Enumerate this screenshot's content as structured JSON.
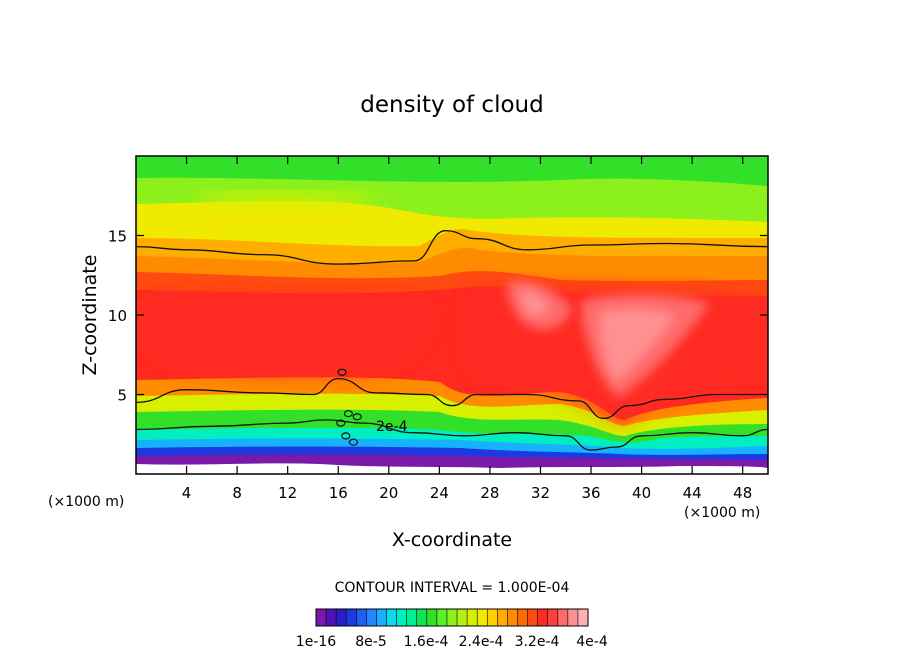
{
  "chart_data": {
    "type": "filled-contour",
    "title": "density of cloud",
    "xlabel": "X-coordinate",
    "ylabel": "Z-coordinate",
    "x_unit": "(×1000 m)",
    "y_unit": "(×1000 m)",
    "xlim": [
      0,
      50
    ],
    "ylim": [
      0,
      20
    ],
    "x_ticks": [
      4,
      8,
      12,
      16,
      20,
      24,
      28,
      32,
      36,
      40,
      44,
      48
    ],
    "y_ticks": [
      5,
      10,
      15
    ],
    "contour_interval_text": "CONTOUR INTERVAL = 1.000E-04",
    "contour_label": "2e-4",
    "colorbar_labels": [
      "1e-16",
      "8e-5",
      "1.6e-4",
      "2.4e-4",
      "3.2e-4",
      "4e-4"
    ],
    "colorbar_colors": [
      "#7a1aa8",
      "#4d12b8",
      "#2a1ec8",
      "#1c3ae0",
      "#1f5ff2",
      "#2585ff",
      "#16b2ff",
      "#0fd9ea",
      "#00eec0",
      "#00f090",
      "#12e45a",
      "#32e02a",
      "#5cf028",
      "#8cf01c",
      "#b4f014",
      "#d7f000",
      "#f0ea00",
      "#ffd000",
      "#ffae00",
      "#ff8c00",
      "#ff6a00",
      "#ff4a10",
      "#ff2a20",
      "#ff4040",
      "#ff6a6a",
      "#ff9090",
      "#ffb0b0"
    ],
    "zones": [
      {
        "name": "base",
        "color": "#7a1aa8"
      },
      {
        "name": "green",
        "color": "#32e02a"
      },
      {
        "name": "yellow",
        "color": "#f0ea00"
      },
      {
        "name": "orange",
        "color": "#ff8c00"
      },
      {
        "name": "red",
        "color": "#ff2a20"
      },
      {
        "name": "pink",
        "color": "#ff9090"
      }
    ],
    "contour_lines": [
      {
        "name": "upper-boundary",
        "points": [
          [
            0,
            14.3
          ],
          [
            4,
            14.1
          ],
          [
            10,
            13.8
          ],
          [
            16,
            13.2
          ],
          [
            22,
            13.4
          ],
          [
            24.5,
            15.3
          ],
          [
            27,
            14.8
          ],
          [
            31,
            14.1
          ],
          [
            36,
            14.4
          ],
          [
            42,
            14.5
          ],
          [
            50,
            14.3
          ]
        ]
      },
      {
        "name": "lower-boundary",
        "points": [
          [
            0,
            4.5
          ],
          [
            4,
            5.3
          ],
          [
            10,
            5.1
          ],
          [
            14,
            5.0
          ],
          [
            16,
            6.0
          ],
          [
            19,
            5.1
          ],
          [
            23,
            5.0
          ],
          [
            25,
            4.3
          ],
          [
            27,
            5.0
          ],
          [
            31,
            5.0
          ],
          [
            35,
            4.6
          ],
          [
            37,
            3.5
          ],
          [
            39,
            4.3
          ],
          [
            42,
            4.7
          ],
          [
            46,
            5.0
          ],
          [
            50,
            5.0
          ]
        ]
      },
      {
        "name": "2e-4-line",
        "points": [
          [
            0,
            2.8
          ],
          [
            6,
            3.0
          ],
          [
            12,
            3.2
          ],
          [
            15,
            3.4
          ],
          [
            18,
            3.2
          ],
          [
            22,
            2.6
          ],
          [
            26,
            2.4
          ],
          [
            30,
            2.6
          ],
          [
            34,
            2.4
          ],
          [
            36,
            1.5
          ],
          [
            38,
            1.7
          ],
          [
            40,
            2.4
          ],
          [
            44,
            2.6
          ],
          [
            48,
            2.4
          ],
          [
            50,
            2.8
          ]
        ]
      }
    ]
  }
}
